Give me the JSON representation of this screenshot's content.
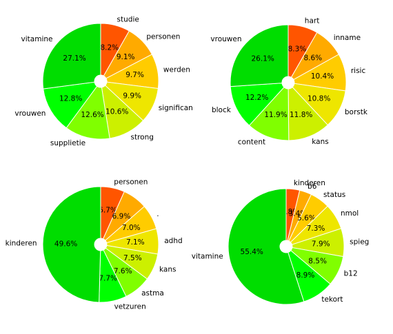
{
  "chart_data": [
    {
      "type": "pie",
      "categories": [
        "studie",
        "personen",
        "werden",
        "significan",
        "strong",
        "supplietie",
        "vrouwen",
        "vitamine"
      ],
      "values": [
        8.2,
        9.1,
        9.7,
        9.9,
        10.6,
        12.6,
        12.8,
        27.1
      ],
      "value_labels": [
        "8.2%",
        "9.1%",
        "9.7%",
        "9.9%",
        "10.6%",
        "12.6%",
        "12.8%",
        "27.1%"
      ],
      "colors": [
        "#ff5500",
        "#ffaa00",
        "#ffcc00",
        "#eee600",
        "#ccf000",
        "#80ff00",
        "#00ff00",
        "#00dd00"
      ]
    },
    {
      "type": "pie",
      "categories": [
        "hart",
        "inname",
        "risic",
        "borstk",
        "kans",
        "content",
        "block",
        "vrouwen"
      ],
      "values": [
        8.3,
        8.6,
        10.4,
        10.8,
        11.8,
        11.9,
        12.2,
        26.1
      ],
      "value_labels": [
        "8.3%",
        "8.6%",
        "10.4%",
        "10.8%",
        "11.8%",
        "11.9%",
        "12.2%",
        "26.1%"
      ],
      "colors": [
        "#ff5500",
        "#ffaa00",
        "#ffcc00",
        "#eee600",
        "#ccf000",
        "#80ff00",
        "#00ff00",
        "#00dd00"
      ]
    },
    {
      "type": "pie",
      "categories": [
        "personen",
        null,
        ".",
        "adhd",
        "kans",
        "astma",
        "vetzuren",
        "kinderen"
      ],
      "values": [
        6.7,
        6.9,
        7.0,
        7.1,
        7.5,
        7.6,
        7.7,
        49.6
      ],
      "value_labels": [
        "6.7%",
        "6.9%",
        "7.0%",
        "7.1%",
        "7.5%",
        "7.6%",
        "7.7%",
        "49.6%"
      ],
      "colors": [
        "#ff5500",
        "#ffaa00",
        "#ffcc00",
        "#eee600",
        "#ccf000",
        "#80ff00",
        "#00ff00",
        "#00dd00"
      ]
    },
    {
      "type": "pie",
      "categories": [
        "kinderen",
        "b6",
        "status",
        "nmol",
        "spieg",
        "b12",
        "tekort",
        "vitamine"
      ],
      "values": [
        3.8,
        3.4,
        5.6,
        7.3,
        7.9,
        8.5,
        8.9,
        55.4
      ],
      "value_labels": [
        "3.8%",
        "3.4%",
        "5.6%",
        "7.3%",
        "7.9%",
        "8.5%",
        "8.9%",
        "55.4%"
      ],
      "colors": [
        "#ff5500",
        "#ffaa00",
        "#ffcc00",
        "#eee600",
        "#ccf000",
        "#80ff00",
        "#00ff00",
        "#00dd00"
      ]
    }
  ]
}
